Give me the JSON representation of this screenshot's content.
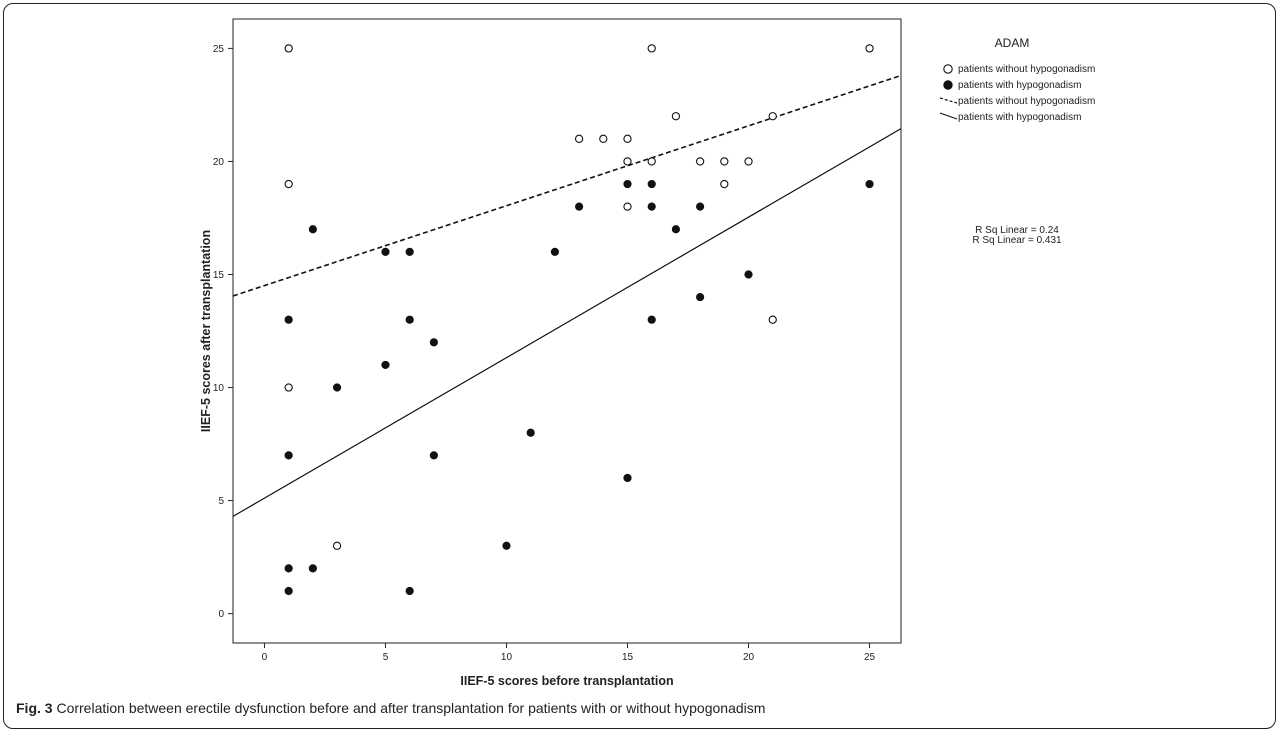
{
  "chart_data": {
    "type": "scatter",
    "xlabel": "IIEF-5 scores before transplantation",
    "ylabel": "IIEF-5 scores after transplantation",
    "x_ticks": [
      0,
      5,
      10,
      15,
      20,
      25
    ],
    "y_ticks": [
      0,
      5,
      10,
      15,
      20,
      25
    ],
    "xlim": [
      -1.3,
      26.3
    ],
    "ylim": [
      -1.3,
      26.3
    ],
    "grid": false,
    "legend": {
      "title": "ADAM",
      "placement": "top-right",
      "entries": [
        {
          "label": "patients without hypogonadism",
          "marker": "open-circle"
        },
        {
          "label": "patients with hypogonadism",
          "marker": "filled-circle"
        },
        {
          "label": "patients without hypogonadism",
          "marker": "dashed-line"
        },
        {
          "label": "patients with hypogonadism",
          "marker": "solid-line"
        }
      ]
    },
    "annotations": [
      "R Sq Linear = 0.24",
      "R Sq Linear = 0.431"
    ],
    "series": [
      {
        "name": "patients without hypogonadism",
        "marker": "open-circle",
        "points": [
          [
            1,
            25
          ],
          [
            1,
            19
          ],
          [
            1,
            10
          ],
          [
            3,
            3
          ],
          [
            13,
            21
          ],
          [
            14,
            21
          ],
          [
            15,
            21
          ],
          [
            15,
            20
          ],
          [
            15,
            18
          ],
          [
            16,
            25
          ],
          [
            16,
            20
          ],
          [
            17,
            22
          ],
          [
            18,
            20
          ],
          [
            19,
            20
          ],
          [
            19,
            19
          ],
          [
            20,
            20
          ],
          [
            21,
            22
          ],
          [
            21,
            13
          ],
          [
            25,
            25
          ]
        ]
      },
      {
        "name": "patients with hypogonadism",
        "marker": "filled-circle",
        "points": [
          [
            1,
            13
          ],
          [
            1,
            7
          ],
          [
            1,
            2
          ],
          [
            1,
            1
          ],
          [
            2,
            17
          ],
          [
            2,
            2
          ],
          [
            3,
            10
          ],
          [
            5,
            16
          ],
          [
            5,
            11
          ],
          [
            6,
            16
          ],
          [
            6,
            13
          ],
          [
            6,
            1
          ],
          [
            7,
            12
          ],
          [
            7,
            7
          ],
          [
            10,
            3
          ],
          [
            11,
            8
          ],
          [
            12,
            16
          ],
          [
            13,
            18
          ],
          [
            15,
            19
          ],
          [
            15,
            6
          ],
          [
            16,
            19
          ],
          [
            16,
            18
          ],
          [
            16,
            13
          ],
          [
            17,
            17
          ],
          [
            18,
            18
          ],
          [
            18,
            14
          ],
          [
            20,
            15
          ],
          [
            25,
            19
          ]
        ]
      }
    ],
    "fit_lines": [
      {
        "name": "patients without hypogonadism",
        "style": "dashed",
        "x": [
          -1.3,
          26.3
        ],
        "y": [
          14.05,
          23.8
        ],
        "r_squared": 0.24
      },
      {
        "name": "patients with hypogonadism",
        "style": "solid",
        "x": [
          -1.3,
          26.3
        ],
        "y": [
          4.3,
          21.45
        ],
        "r_squared": 0.431
      }
    ]
  },
  "caption": {
    "label": "Fig. 3",
    "text": "Correlation between erectile dysfunction before and after transplantation for patients with or without hypogonadism"
  }
}
